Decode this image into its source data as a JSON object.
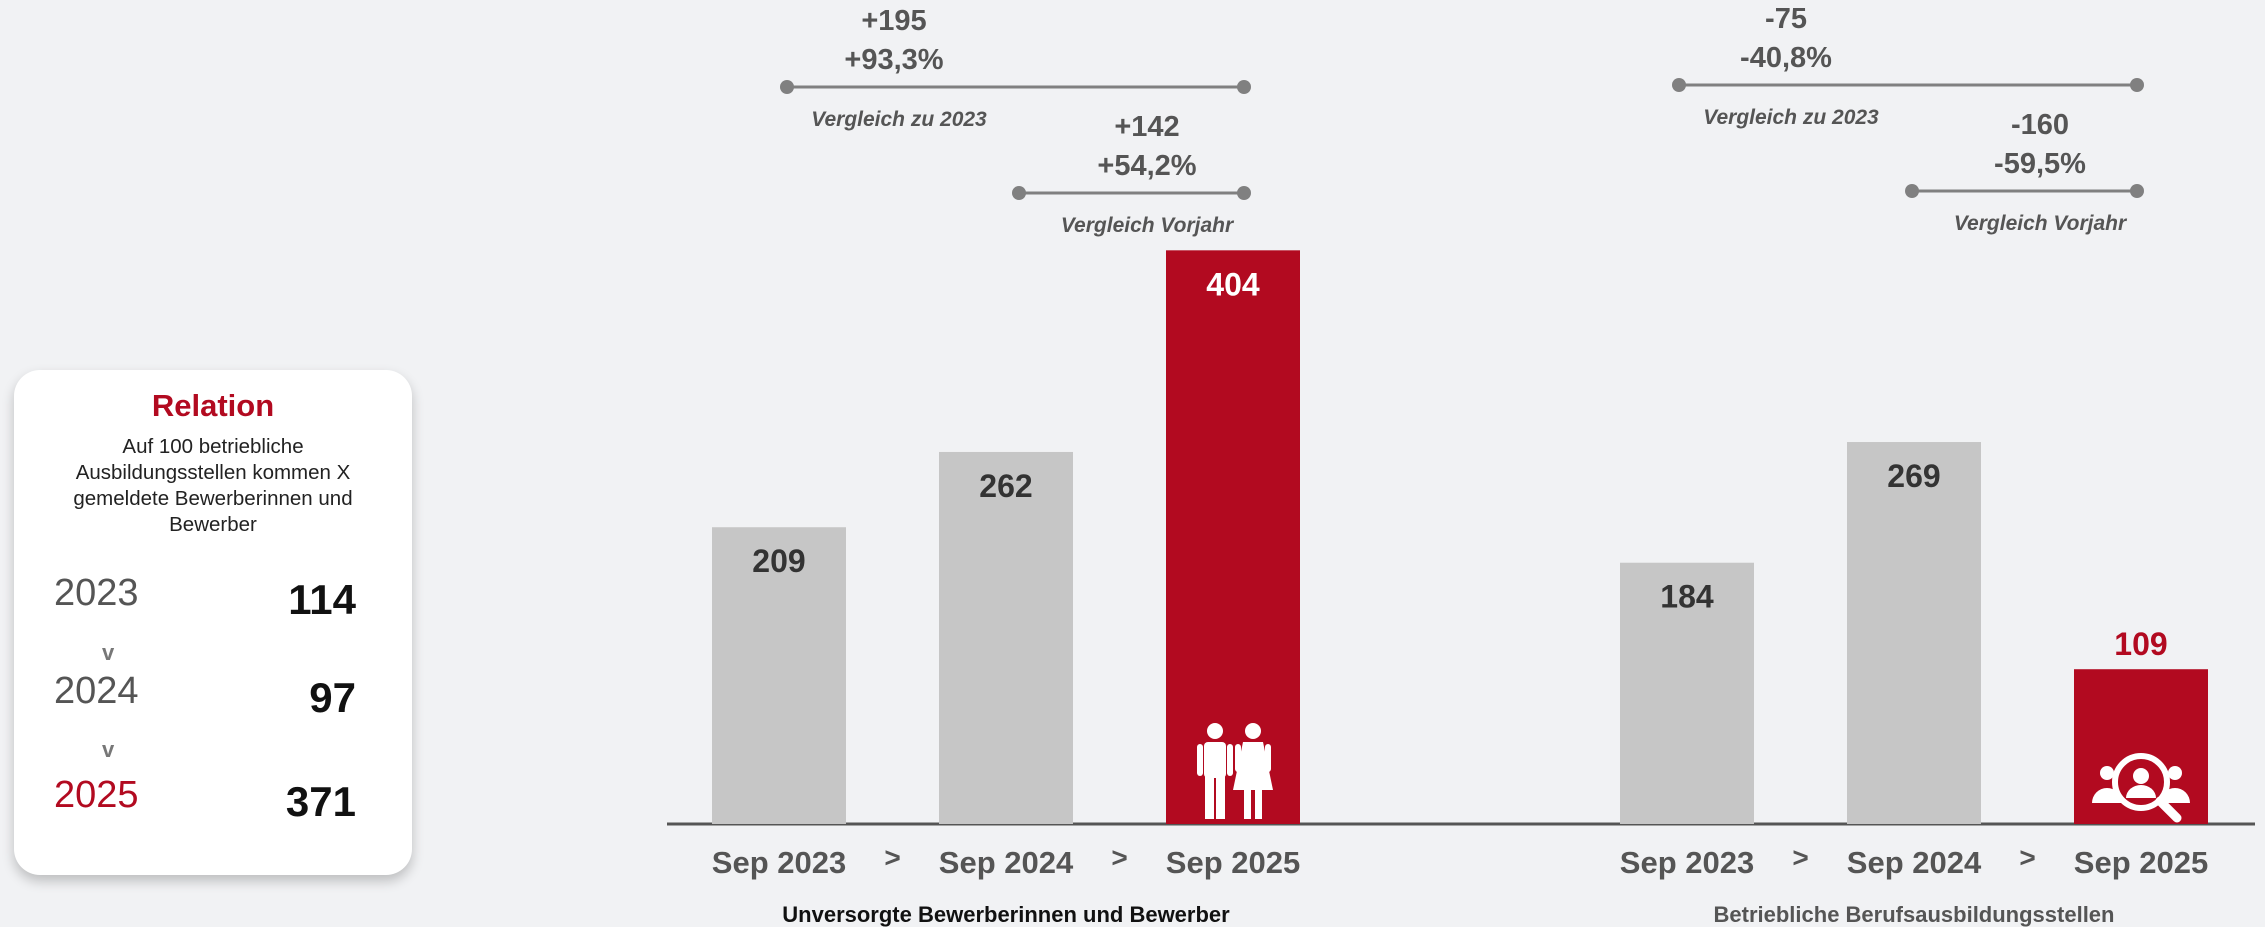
{
  "chart_data": [
    {
      "type": "bar",
      "group_label": "Unversorgte Bewerberinnen und Bewerber",
      "categories": [
        "Sep 2023",
        "Sep 2024",
        "Sep 2025"
      ],
      "separators": [
        ">",
        ">"
      ],
      "values": [
        209,
        262,
        404
      ],
      "highlight_index": 2,
      "highlight_icon": "people-icon",
      "comparisons": [
        {
          "abs": "+195",
          "pct": "+93,3%",
          "caption": "Vergleich zu 2023"
        },
        {
          "abs": "+142",
          "pct": "+54,2%",
          "caption": "Vergleich Vorjahr"
        }
      ]
    },
    {
      "type": "bar",
      "group_label": "Betriebliche Berufsausbildungsstellen",
      "categories": [
        "Sep 2023",
        "Sep 2024",
        "Sep 2025"
      ],
      "separators": [
        ">",
        ">"
      ],
      "values": [
        184,
        269,
        109
      ],
      "highlight_index": 2,
      "highlight_icon": "search-people-icon",
      "comparisons": [
        {
          "abs": "-75",
          "pct": "-40,8%",
          "caption": "Vergleich zu 2023"
        },
        {
          "abs": "-160",
          "pct": "-59,5%",
          "caption": "Vergleich Vorjahr"
        }
      ]
    }
  ],
  "relation": {
    "title": "Relation",
    "description": "Auf 100 betriebliche Ausbildungsstellen kommen X gemeldete Bewerberinnen und Bewerber",
    "rows": [
      {
        "year": "2023",
        "value": "114"
      },
      {
        "year": "2024",
        "value": "97"
      },
      {
        "year": "2025",
        "value": "371"
      }
    ],
    "separator": "v"
  },
  "colors": {
    "highlight": "#b20a20",
    "bar": "#c6c6c6",
    "axis": "#555555",
    "comparison_line": "#808080"
  }
}
